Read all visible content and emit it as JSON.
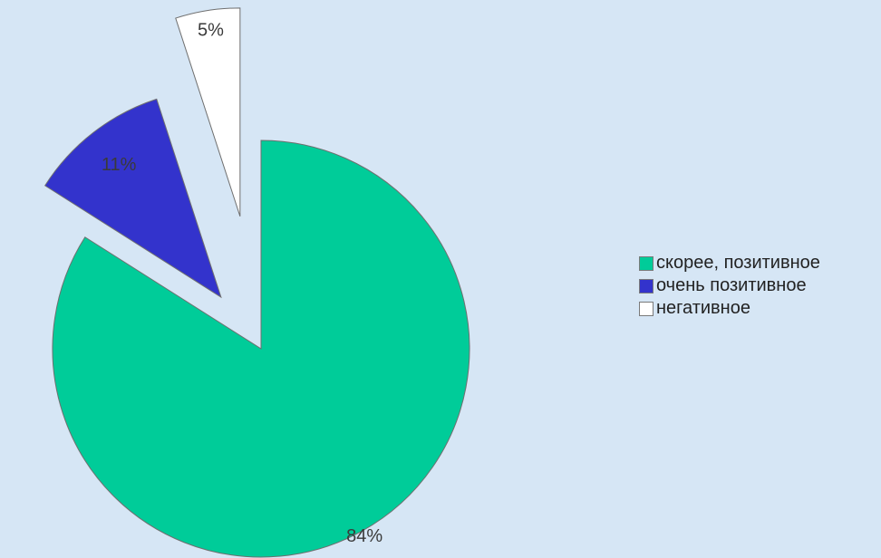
{
  "chart_data": {
    "type": "pie",
    "exploded": true,
    "series": [
      {
        "slices": [
          {
            "name": "скорее, позитивное",
            "value": 84,
            "label": "84%",
            "color": "#00cc99"
          },
          {
            "name": "очень позитивное",
            "value": 11,
            "label": "11%",
            "color": "#3333cc"
          },
          {
            "name": "негативное",
            "value": 5,
            "label": "5%",
            "color": "#ffffff"
          }
        ]
      }
    ],
    "legend": {
      "position": "right",
      "items": [
        {
          "label": "скорее, позитивное",
          "color": "#00cc99"
        },
        {
          "label": "очень позитивное",
          "color": "#3333cc"
        },
        {
          "label": "негативное",
          "color": "#ffffff"
        }
      ]
    }
  }
}
